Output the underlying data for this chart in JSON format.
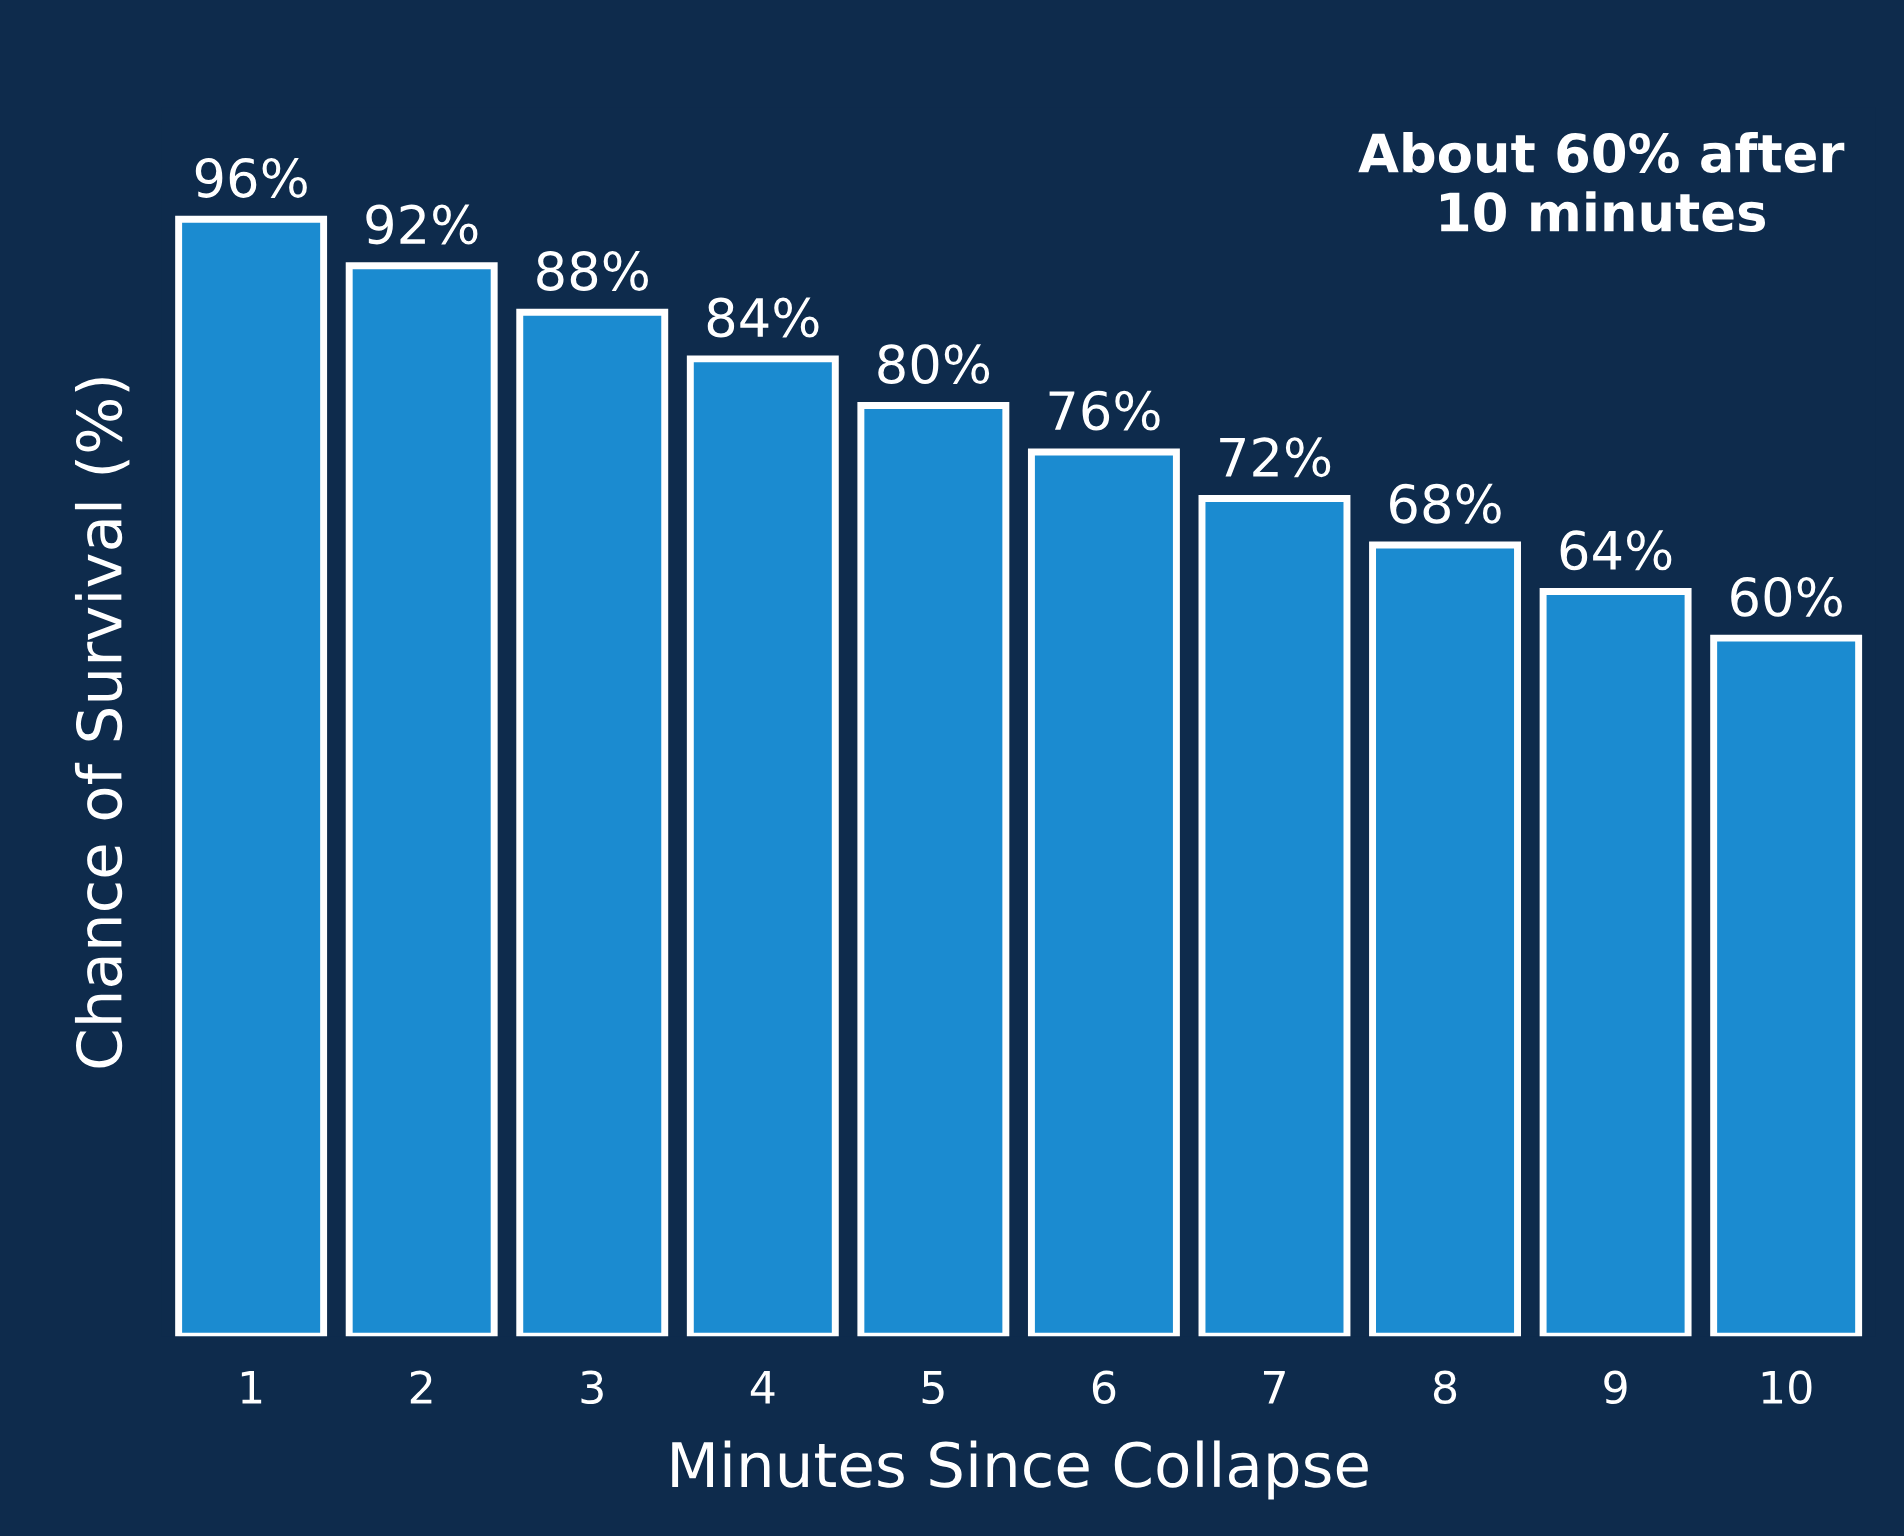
{
  "chart_data": {
    "type": "bar",
    "xlabel": "Minutes Since Collapse",
    "ylabel": "Chance of Survival (%)",
    "categories": [
      "1",
      "2",
      "3",
      "4",
      "5",
      "6",
      "7",
      "8",
      "9",
      "10"
    ],
    "values": [
      96,
      92,
      88,
      84,
      80,
      76,
      72,
      68,
      64,
      60
    ],
    "value_labels": [
      "96%",
      "92%",
      "88%",
      "84%",
      "80%",
      "76%",
      "72%",
      "68%",
      "64%",
      "60%"
    ],
    "color": "#1b8bd0",
    "annotations": [
      "About 60% after\n10 minutes"
    ],
    "grid": false,
    "legend": false
  }
}
